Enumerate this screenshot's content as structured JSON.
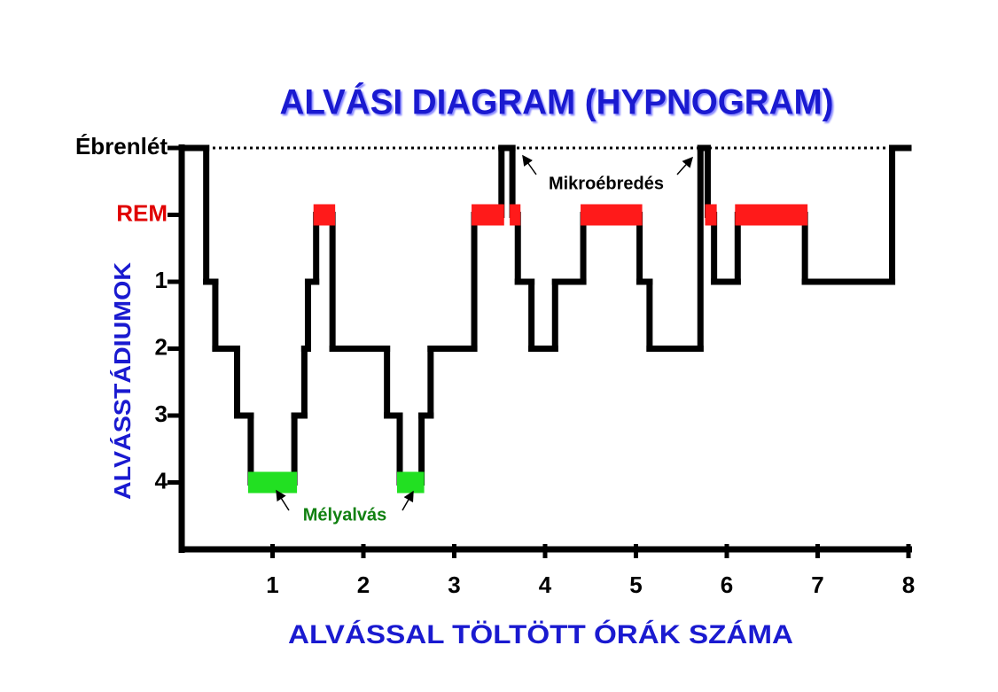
{
  "chart_data": {
    "type": "step",
    "title": "ALVÁSI DIAGRAM (HYPNOGRAM)",
    "x_label": "ALVÁSSAL TÖLTÖTT ÓRÁK SZÁMA",
    "y_label": "ALVÁSSTÁDIUMOK",
    "x": [
      0,
      0.27,
      0.37,
      0.61,
      0.76,
      1.24,
      1.35,
      1.39,
      1.48,
      1.66,
      2.26,
      2.4,
      2.64,
      2.74,
      3.22,
      3.52,
      3.64,
      3.7,
      3.85,
      4.11,
      4.42,
      5.04,
      5.15,
      5.71,
      5.79,
      5.86,
      6.12,
      6.86,
      7.82
    ],
    "values": [
      -1,
      1,
      2,
      3,
      4,
      3,
      2,
      1,
      0,
      2,
      3,
      4,
      3,
      2,
      0,
      -1,
      0,
      1,
      2,
      1,
      0,
      1,
      2,
      -1,
      0,
      1,
      0,
      1,
      -1
    ],
    "xlim": [
      0,
      8
    ],
    "xticks": [
      1,
      2,
      3,
      4,
      5,
      6,
      7,
      8
    ],
    "ylim": [
      5,
      -1
    ],
    "yticks": [
      {
        "value": -1,
        "label": "Ébrenlét"
      },
      {
        "value": 0,
        "label": "REM"
      },
      1,
      2,
      3,
      4
    ],
    "ytick_colors": [
      "#000000",
      "#e00000",
      "#000000",
      "#000000",
      "#000000",
      "#000000"
    ],
    "line_color": "#000000",
    "rem_color": "#ff1a1a",
    "deep_color": "#22e022",
    "title_color": "#1a1ad0",
    "reference_line": true,
    "annotations": [
      {
        "text": "Mikroébredés",
        "color": "#000000"
      },
      {
        "text": "Mélyalvás",
        "color": "#108010"
      }
    ]
  }
}
